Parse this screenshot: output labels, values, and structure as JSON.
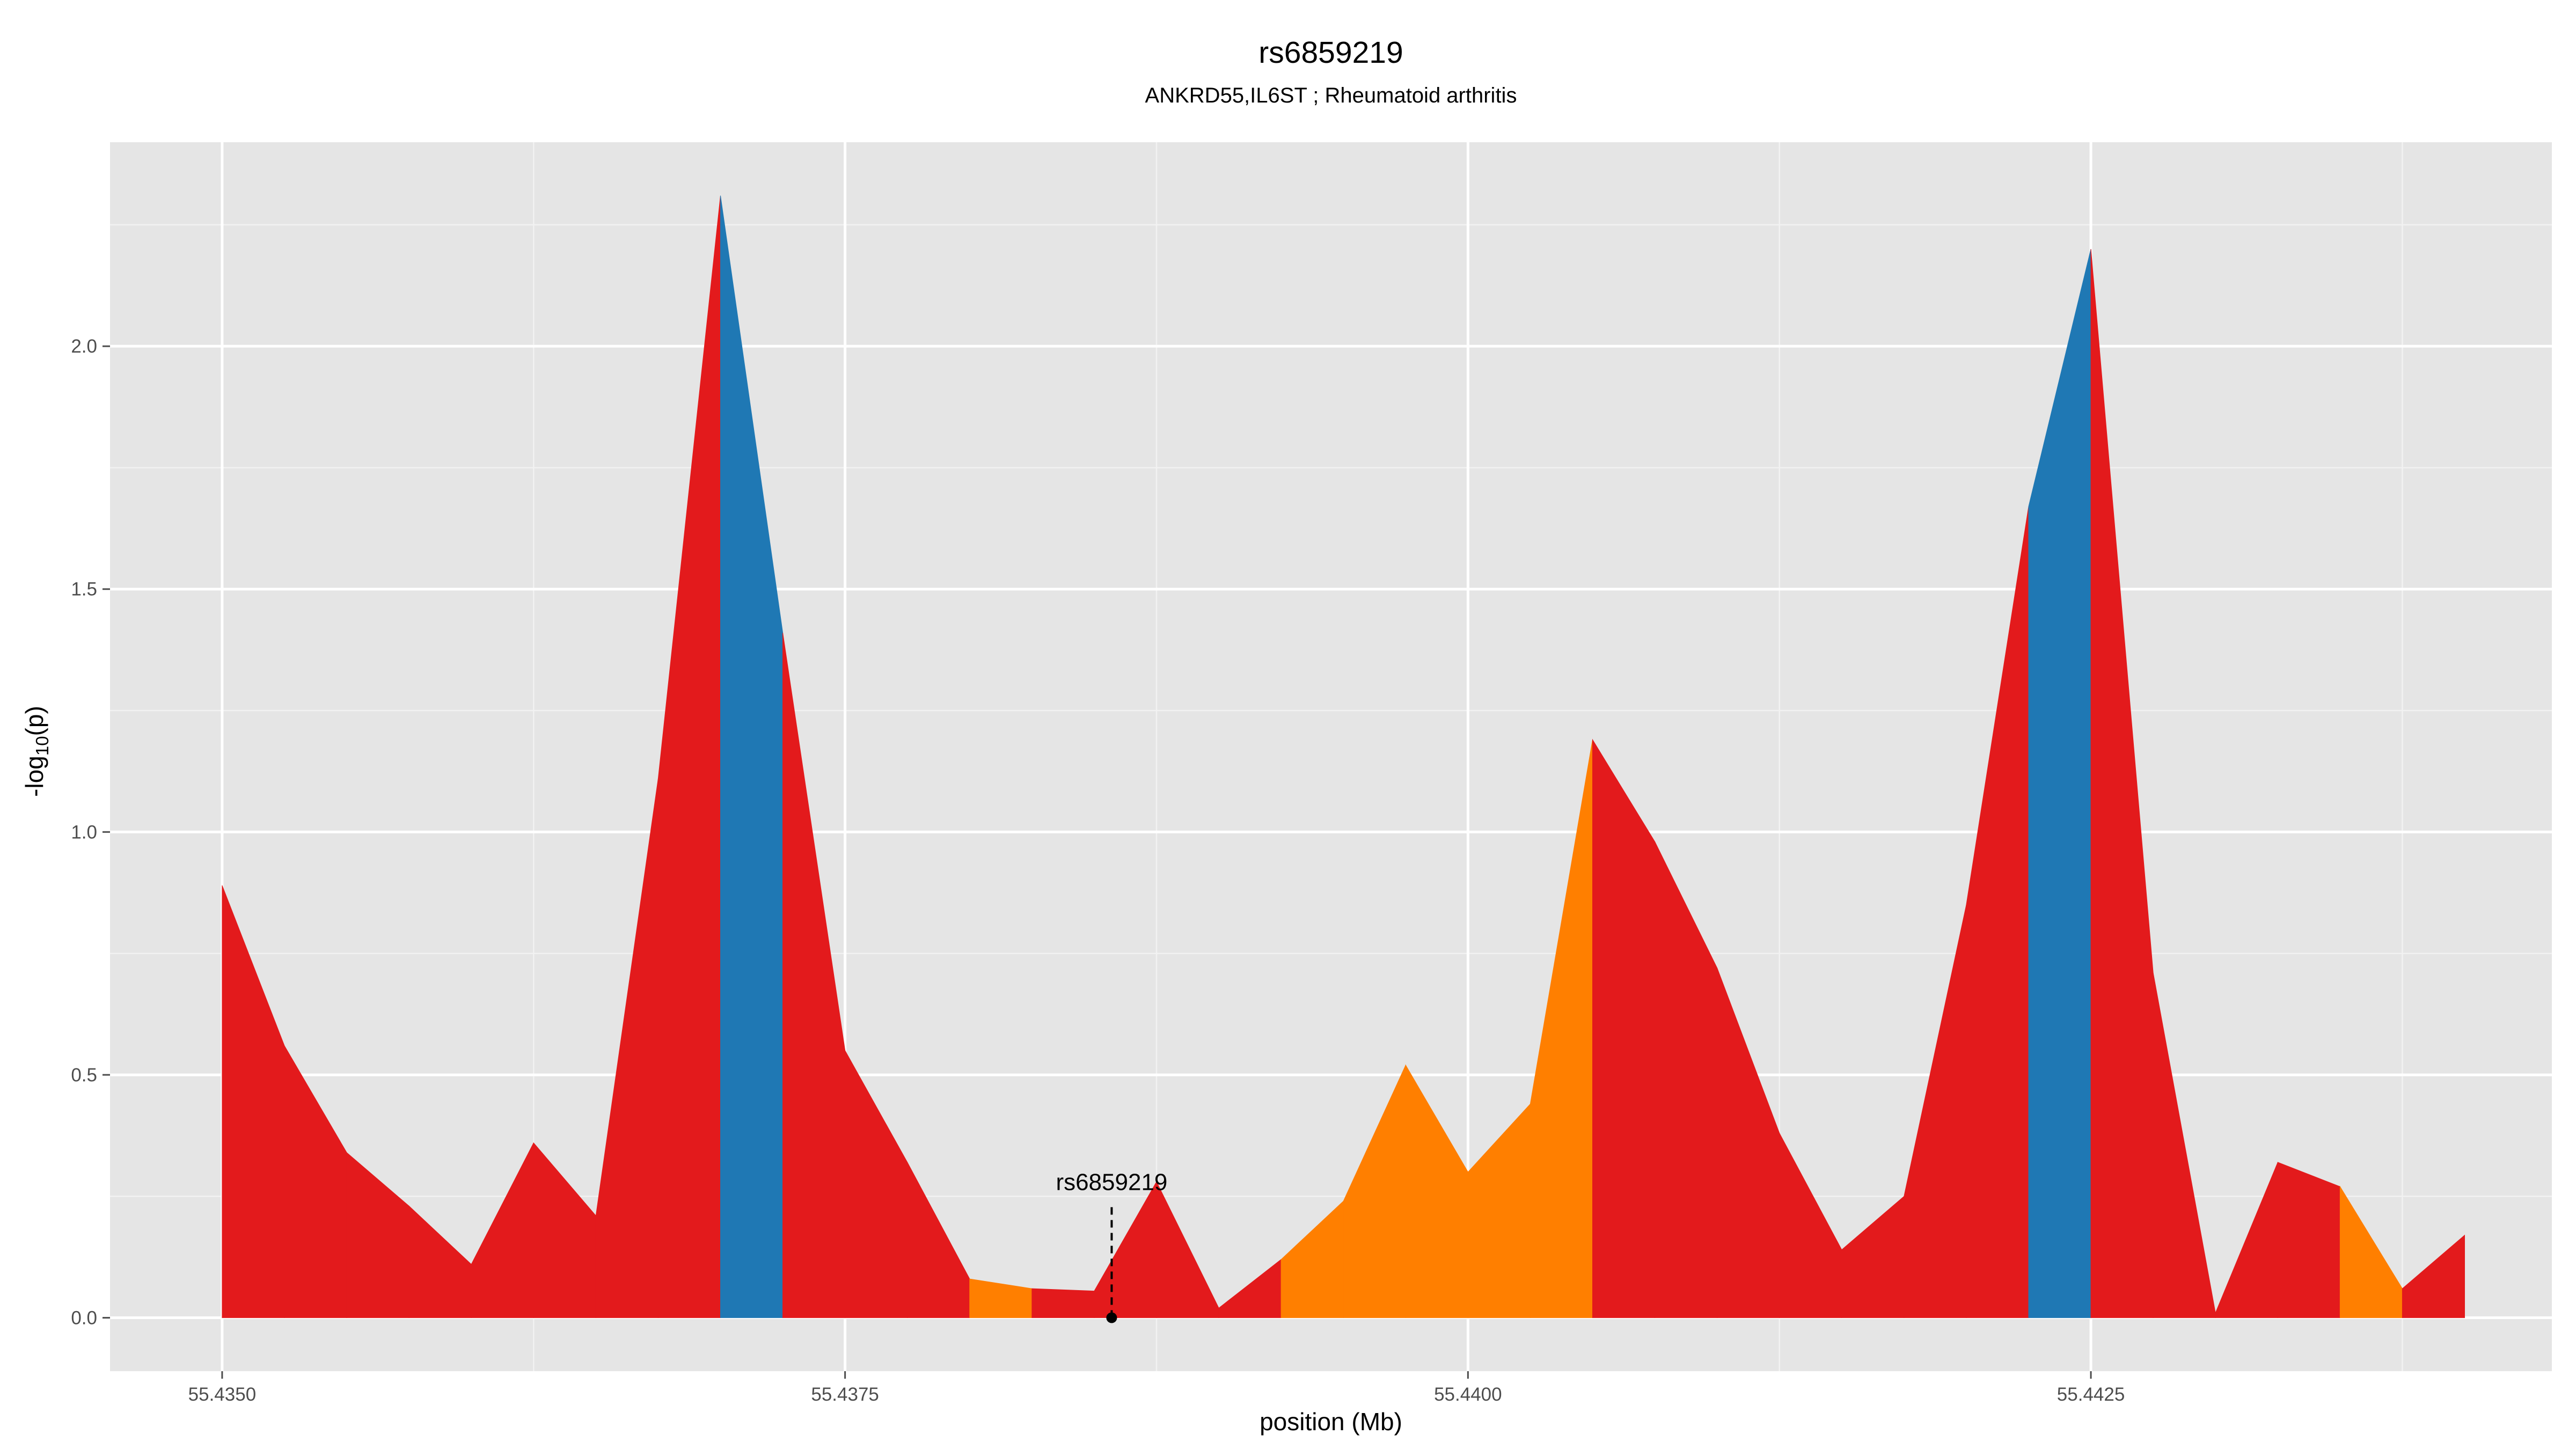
{
  "chart_data": {
    "type": "area",
    "title": "rs6859219",
    "subtitle": "ANKRD55,IL6ST ; Rheumatoid arthritis",
    "xlabel": "position (Mb)",
    "ylabel_main": "-log",
    "ylabel_sub": "10",
    "ylabel_tail": "(p)",
    "xlim": [
      55.43455,
      55.44435
    ],
    "ylim": [
      -0.11,
      2.42
    ],
    "x_ticks": [
      55.435,
      55.4375,
      55.44,
      55.4425
    ],
    "x_tick_labels": [
      "55.4350",
      "55.4375",
      "55.4400",
      "55.4425"
    ],
    "y_ticks": [
      0,
      0.5,
      1,
      1.5,
      2
    ],
    "y_tick_labels": [
      "0.0",
      "0.5",
      "1.0",
      "1.5",
      "2.0"
    ],
    "grid": true,
    "colors": {
      "panel": "#e5e5e5",
      "grid": "#ffffff",
      "red": "#e31a1c",
      "blue": "#1f78b4",
      "orange": "#ff7f00"
    },
    "points": [
      {
        "x": 55.435,
        "y": 0.89,
        "c": "red"
      },
      {
        "x": 55.43525,
        "y": 0.56,
        "c": "red"
      },
      {
        "x": 55.4355,
        "y": 0.34,
        "c": "red"
      },
      {
        "x": 55.43575,
        "y": 0.23,
        "c": "red"
      },
      {
        "x": 55.436,
        "y": 0.11,
        "c": "red"
      },
      {
        "x": 55.43625,
        "y": 0.36,
        "c": "red"
      },
      {
        "x": 55.4365,
        "y": 0.21,
        "c": "red"
      },
      {
        "x": 55.43675,
        "y": 1.11,
        "c": "red"
      },
      {
        "x": 55.437,
        "y": 2.31,
        "c": "blue"
      },
      {
        "x": 55.43725,
        "y": 1.41,
        "c": "red"
      },
      {
        "x": 55.4375,
        "y": 0.55,
        "c": "red"
      },
      {
        "x": 55.43775,
        "y": 0.32,
        "c": "red"
      },
      {
        "x": 55.438,
        "y": 0.08,
        "c": "orange"
      },
      {
        "x": 55.43825,
        "y": 0.06,
        "c": "red"
      },
      {
        "x": 55.4385,
        "y": 0.055,
        "c": "red"
      },
      {
        "x": 55.43875,
        "y": 0.28,
        "c": "red"
      },
      {
        "x": 55.439,
        "y": 0.02,
        "c": "red"
      },
      {
        "x": 55.43925,
        "y": 0.12,
        "c": "orange"
      },
      {
        "x": 55.4395,
        "y": 0.24,
        "c": "orange"
      },
      {
        "x": 55.43975,
        "y": 0.52,
        "c": "orange"
      },
      {
        "x": 55.44,
        "y": 0.3,
        "c": "orange"
      },
      {
        "x": 55.44025,
        "y": 0.44,
        "c": "orange"
      },
      {
        "x": 55.4405,
        "y": 1.19,
        "c": "red"
      },
      {
        "x": 55.44075,
        "y": 0.98,
        "c": "red"
      },
      {
        "x": 55.441,
        "y": 0.72,
        "c": "red"
      },
      {
        "x": 55.44125,
        "y": 0.38,
        "c": "red"
      },
      {
        "x": 55.4415,
        "y": 0.14,
        "c": "red"
      },
      {
        "x": 55.44175,
        "y": 0.25,
        "c": "red"
      },
      {
        "x": 55.442,
        "y": 0.85,
        "c": "red"
      },
      {
        "x": 55.44225,
        "y": 1.67,
        "c": "blue"
      },
      {
        "x": 55.4425,
        "y": 2.2,
        "c": "red"
      },
      {
        "x": 55.44275,
        "y": 0.71,
        "c": "red"
      },
      {
        "x": 55.443,
        "y": 0.01,
        "c": "red"
      },
      {
        "x": 55.44325,
        "y": 0.32,
        "c": "red"
      },
      {
        "x": 55.4435,
        "y": 0.27,
        "c": "orange"
      },
      {
        "x": 55.44375,
        "y": 0.06,
        "c": "red"
      },
      {
        "x": 55.444,
        "y": 0.17,
        "c": "red"
      }
    ],
    "annotation": {
      "label": "rs6859219",
      "x": 55.43857,
      "y": 0.0
    }
  }
}
